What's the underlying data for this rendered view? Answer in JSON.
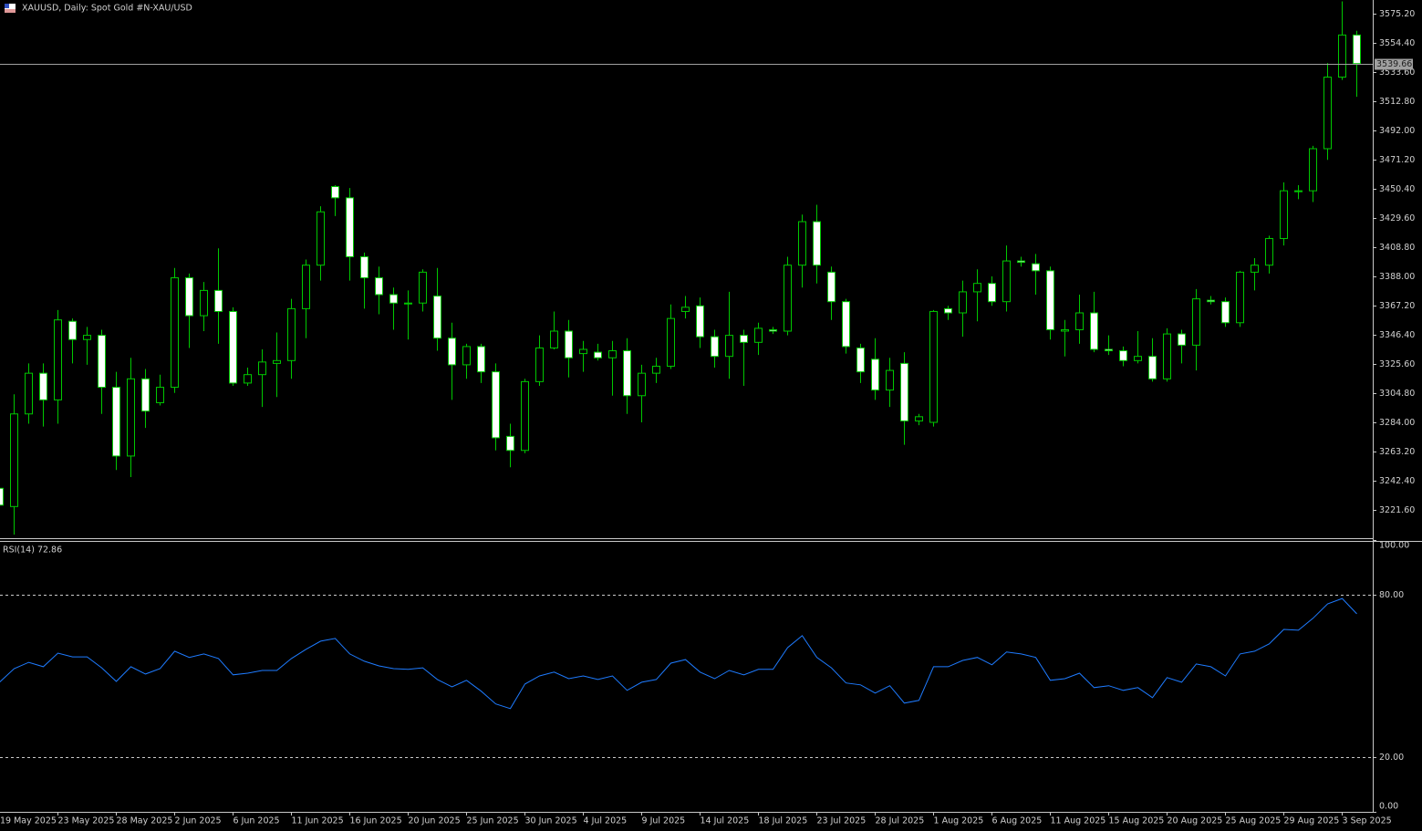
{
  "chart_data": [
    {
      "type": "candlestick",
      "title": "XAUUSD, Daily:  Spot Gold #N-XAU/USD",
      "categories": [
        "19 May 2025",
        null,
        null,
        null,
        "23 May 2025",
        null,
        null,
        null,
        "28 May 2025",
        null,
        null,
        null,
        "2 Jun 2025",
        null,
        null,
        null,
        "6 Jun 2025",
        null,
        null,
        null,
        "11 Jun 2025",
        null,
        null,
        null,
        "16 Jun 2025",
        null,
        null,
        null,
        "20 Jun 2025",
        null,
        null,
        null,
        "25 Jun 2025",
        null,
        null,
        null,
        "30 Jun 2025",
        null,
        null,
        null,
        "4 Jul 2025",
        null,
        null,
        null,
        "9 Jul 2025",
        null,
        null,
        null,
        "14 Jul 2025",
        null,
        null,
        null,
        "18 Jul 2025",
        null,
        null,
        null,
        "23 Jul 2025",
        null,
        null,
        null,
        "28 Jul 2025",
        null,
        null,
        null,
        "1 Aug 2025",
        null,
        null,
        null,
        "6 Aug 2025",
        null,
        null,
        null,
        "11 Aug 2025",
        null,
        null,
        null,
        "15 Aug 2025",
        null,
        null,
        null,
        "20 Aug 2025",
        null,
        null,
        null,
        "25 Aug 2025",
        null,
        null,
        null,
        "29 Aug 2025",
        null,
        null,
        null,
        "3 Sep 2025",
        null
      ],
      "open": [
        3237,
        3224,
        3290,
        3319,
        3300,
        3356,
        3343,
        3346,
        3309,
        3260,
        3315,
        3298,
        3309,
        3387,
        3360,
        3378,
        3363,
        3312,
        3318,
        3326,
        3328,
        3365,
        3396,
        3452,
        3444,
        3402,
        3387,
        3375,
        3369,
        3369,
        3374,
        3344,
        3325,
        3338,
        3320,
        3274,
        3264,
        3313,
        3337,
        3349,
        3333,
        3334,
        3330,
        3335,
        3303,
        3319,
        3324,
        3363,
        3367,
        3345,
        3331,
        3346,
        3341,
        3350,
        3349,
        3396,
        3427,
        3391,
        3370,
        3337,
        3329,
        3307,
        3326,
        3285,
        3284,
        3365,
        3362,
        3377,
        3383,
        3370,
        3399,
        3397,
        3392,
        3349,
        3350,
        3362,
        3336,
        3335,
        3328,
        3331,
        3315,
        3347,
        3339,
        3371,
        3370,
        3355,
        3391,
        3396,
        3415,
        3449,
        3449,
        3479,
        3530,
        3560
      ],
      "high": [
        3240,
        3304,
        3326,
        3326,
        3364,
        3358,
        3352,
        3350,
        3320,
        3330,
        3322,
        3318,
        3394,
        3390,
        3384,
        3408,
        3366,
        3323,
        3336,
        3348,
        3372,
        3400,
        3438,
        3453,
        3451,
        3405,
        3395,
        3380,
        3378,
        3393,
        3394,
        3355,
        3340,
        3340,
        3326,
        3283,
        3315,
        3346,
        3363,
        3357,
        3342,
        3340,
        3342,
        3344,
        3325,
        3330,
        3368,
        3374,
        3373,
        3350,
        3377,
        3350,
        3355,
        3352,
        3402,
        3432,
        3439,
        3395,
        3372,
        3340,
        3344,
        3330,
        3334,
        3290,
        3364,
        3367,
        3385,
        3393,
        3388,
        3410,
        3402,
        3404,
        3395,
        3357,
        3375,
        3377,
        3346,
        3338,
        3349,
        3344,
        3351,
        3350,
        3379,
        3374,
        3373,
        3392,
        3401,
        3417,
        3455,
        3453,
        3481,
        3540,
        3584,
        3563
      ],
      "low": [
        3222,
        3204,
        3283,
        3281,
        3283,
        3326,
        3325,
        3290,
        3250,
        3245,
        3280,
        3296,
        3305,
        3337,
        3349,
        3340,
        3310,
        3310,
        3295,
        3302,
        3315,
        3344,
        3385,
        3431,
        3385,
        3365,
        3361,
        3350,
        3343,
        3363,
        3335,
        3300,
        3315,
        3312,
        3264,
        3252,
        3262,
        3310,
        3336,
        3316,
        3320,
        3328,
        3303,
        3290,
        3284,
        3312,
        3322,
        3358,
        3337,
        3323,
        3315,
        3310,
        3332,
        3347,
        3346,
        3380,
        3383,
        3357,
        3333,
        3312,
        3300,
        3295,
        3268,
        3282,
        3281,
        3357,
        3345,
        3356,
        3367,
        3363,
        3395,
        3375,
        3343,
        3331,
        3340,
        3334,
        3332,
        3324,
        3326,
        3313,
        3313,
        3326,
        3321,
        3368,
        3352,
        3352,
        3378,
        3390,
        3410,
        3443,
        3441,
        3471,
        3528,
        3516
      ],
      "close": [
        3225,
        3290,
        3319,
        3300,
        3357,
        3343,
        3346,
        3309,
        3260,
        3315,
        3292,
        3309,
        3387,
        3360,
        3378,
        3363,
        3312,
        3318,
        3327,
        3328,
        3365,
        3396,
        3434,
        3444,
        3402,
        3387,
        3375,
        3369,
        3369,
        3391,
        3344,
        3325,
        3338,
        3320,
        3273,
        3264,
        3313,
        3337,
        3349,
        3330,
        3336,
        3330,
        3335,
        3303,
        3319,
        3324,
        3358,
        3366,
        3345,
        3331,
        3346,
        3341,
        3351,
        3349,
        3396,
        3427,
        3396,
        3370,
        3338,
        3320,
        3307,
        3321,
        3285,
        3288,
        3363,
        3362,
        3377,
        3383,
        3370,
        3399,
        3398,
        3392,
        3350,
        3350,
        3362,
        3336,
        3335,
        3328,
        3331,
        3315,
        3347,
        3339,
        3372,
        3370,
        3355,
        3391,
        3396,
        3415,
        3449,
        3449,
        3479,
        3530,
        3560,
        3539.66
      ],
      "bull_color": "#00c800",
      "bear_color": "#ffffff",
      "price_line": 3539.66,
      "ylim": [
        3200.8,
        3584.95
      ],
      "yticks": [
        {
          "value": 3575.2,
          "label": "3575.20"
        },
        {
          "value": 3554.4,
          "label": "3554.40"
        },
        {
          "value": 3533.6,
          "label": "3533.60"
        },
        {
          "value": 3512.8,
          "label": "3512.80"
        },
        {
          "value": 3492,
          "label": "3492.00"
        },
        {
          "value": 3471.2,
          "label": "3471.20"
        },
        {
          "value": 3450.4,
          "label": "3450.40"
        },
        {
          "value": 3429.6,
          "label": "3429.60"
        },
        {
          "value": 3408.8,
          "label": "3408.80"
        },
        {
          "value": 3388,
          "label": "3388.00"
        },
        {
          "value": 3367.2,
          "label": "3367.20"
        },
        {
          "value": 3346.4,
          "label": "3346.40"
        },
        {
          "value": 3325.6,
          "label": "3325.60"
        },
        {
          "value": 3304.8,
          "label": "3304.80"
        },
        {
          "value": 3284,
          "label": "3284.00"
        },
        {
          "value": 3263.2,
          "label": "3263.20"
        },
        {
          "value": 3242.4,
          "label": "3242.40"
        },
        {
          "value": 3221.6,
          "label": "3221.60"
        }
      ]
    },
    {
      "type": "line",
      "title": "RSI(14) 72.86",
      "color": "#1e7bff",
      "values": [
        47.7,
        52.7,
        55,
        53.4,
        58.4,
        57,
        57,
        53,
        48,
        53.4,
        50.7,
        52.7,
        59.1,
        56.8,
        58.1,
        56.4,
        50.4,
        51,
        52,
        52,
        56.4,
        59.8,
        62.8,
        63.8,
        58.1,
        55.4,
        53.7,
        52.7,
        52.4,
        53,
        48.7,
        46,
        48.4,
        44.4,
        39.7,
        38,
        47,
        50,
        51.4,
        49,
        50,
        48.7,
        50,
        44.7,
        47.7,
        48.7,
        54.7,
        56,
        51.4,
        49,
        52,
        50.4,
        52.4,
        52.4,
        60.4,
        64.8,
        56.8,
        53,
        47.4,
        46.7,
        43.7,
        46.4,
        40,
        41,
        53.4,
        53.4,
        55.7,
        56.8,
        54.1,
        58.8,
        58.1,
        56.8,
        48.4,
        49,
        51,
        45.7,
        46.4,
        44.7,
        45.7,
        42,
        49.4,
        47.7,
        54.4,
        53.4,
        50,
        58.1,
        59.1,
        61.8,
        67.1,
        66.8,
        71.2,
        76.5,
        78.5,
        72.86
      ],
      "ylim": [
        0,
        100
      ],
      "yticks": [
        {
          "value": 100,
          "label": "100.00"
        },
        {
          "value": 80,
          "label": "80.00"
        },
        {
          "value": 20,
          "label": "20.00"
        },
        {
          "value": 0,
          "label": "0.00"
        }
      ],
      "levels": [
        20,
        80
      ]
    }
  ]
}
